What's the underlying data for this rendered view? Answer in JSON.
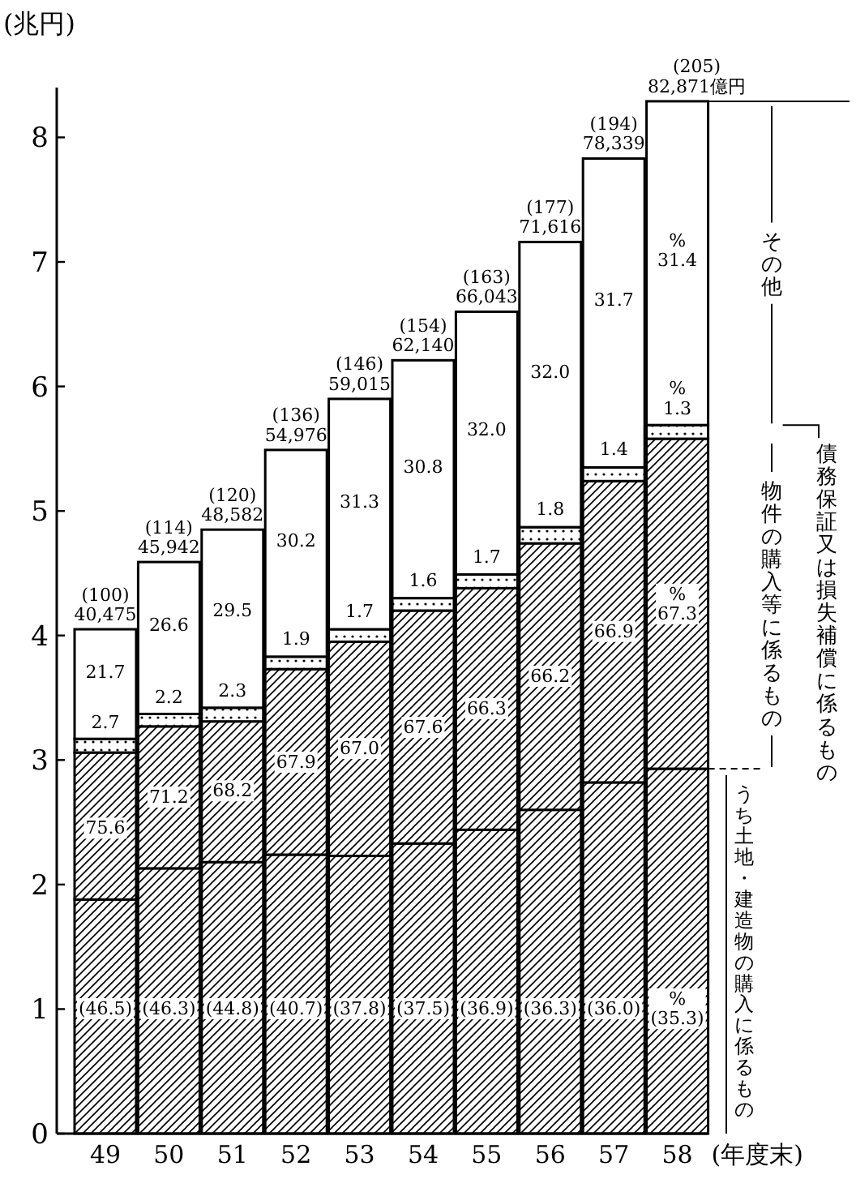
{
  "chart_data": {
    "type": "bar",
    "stacked": true,
    "ylabel": "(兆円)",
    "xlabel": "(年度末)",
    "categories": [
      "49",
      "50",
      "51",
      "52",
      "53",
      "54",
      "55",
      "56",
      "57",
      "58"
    ],
    "ylim": [
      0,
      8.4
    ],
    "yticks": [
      0,
      1,
      2,
      3,
      4,
      5,
      6,
      7,
      8
    ],
    "series": [
      {
        "name": "うち土地・建造物の購入に係るもの",
        "color": "#000000",
        "values": [
          1.88,
          2.13,
          2.18,
          2.24,
          2.23,
          2.33,
          2.44,
          2.6,
          2.82,
          2.93
        ]
      },
      {
        "name": "物件の購入等に係るもの",
        "color": "#000000",
        "values": [
          1.18,
          1.14,
          1.13,
          1.49,
          1.72,
          1.87,
          1.94,
          2.14,
          2.42,
          2.65
        ]
      },
      {
        "name": "債務保証又は損失補償に係るもの",
        "color": "#000000",
        "values": [
          0.11,
          0.1,
          0.11,
          0.1,
          0.1,
          0.1,
          0.11,
          0.13,
          0.11,
          0.11
        ]
      },
      {
        "name": "その他",
        "color": "#ffffff",
        "values": [
          0.88,
          1.22,
          1.43,
          1.66,
          1.85,
          1.91,
          2.11,
          2.29,
          2.48,
          2.6
        ]
      }
    ],
    "totals": [
      "(100)\n40,475",
      "(114)\n45,942",
      "(120)\n48,582",
      "(136)\n54,976",
      "(146)\n59,015",
      "(154)\n62,140",
      "(163)\n66,043",
      "(177)\n71,616",
      "(194)\n78,339",
      "(205)\n82,871億円"
    ],
    "annotations": [
      {
        "text": "(46.5)",
        "x": "49",
        "y": 1
      },
      {
        "text": "(46.3)",
        "x": "50",
        "y": 1
      },
      {
        "text": "(44.8)",
        "x": "51",
        "y": 1
      },
      {
        "text": "(40.7)",
        "x": "52",
        "y": 1
      },
      {
        "text": "(37.8)",
        "x": "53",
        "y": 1
      },
      {
        "text": "(37.5)",
        "x": "54",
        "y": 1
      },
      {
        "text": "(36.9)",
        "x": "55",
        "y": 1
      },
      {
        "text": "(36.3)",
        "x": "56",
        "y": 1
      },
      {
        "text": "(36.0)",
        "x": "57",
        "y": 1
      },
      {
        "text": "%\n(35.3)",
        "x": "58",
        "y": 1
      },
      {
        "text": "75.6",
        "x": "49",
        "y": 2.45
      },
      {
        "text": "71.2",
        "x": "50",
        "y": 2.7
      },
      {
        "text": "68.2",
        "x": "51",
        "y": 2.75
      },
      {
        "text": "67.9",
        "x": "52",
        "y": 2.98
      },
      {
        "text": "67.0",
        "x": "53",
        "y": 3.09
      },
      {
        "text": "67.6",
        "x": "54",
        "y": 3.26
      },
      {
        "text": "66.3",
        "x": "55",
        "y": 3.41
      },
      {
        "text": "66.2",
        "x": "56",
        "y": 3.67
      },
      {
        "text": "66.9",
        "x": "57",
        "y": 4.03
      },
      {
        "text": "%\n67.3",
        "x": "58",
        "y": 4.25
      },
      {
        "text": "2.7",
        "x": "49",
        "y": 3.3
      },
      {
        "text": "2.2",
        "x": "50",
        "y": 3.5
      },
      {
        "text": "2.3",
        "x": "51",
        "y": 3.55
      },
      {
        "text": "1.9",
        "x": "52",
        "y": 3.97
      },
      {
        "text": "1.7",
        "x": "53",
        "y": 4.19
      },
      {
        "text": "1.6",
        "x": "54",
        "y": 4.44
      },
      {
        "text": "1.7",
        "x": "55",
        "y": 4.63
      },
      {
        "text": "1.8",
        "x": "56",
        "y": 5.01
      },
      {
        "text": "1.4",
        "x": "57",
        "y": 5.49
      },
      {
        "text": "%\n1.3",
        "x": "58",
        "y": 5.9
      },
      {
        "text": "21.7",
        "x": "49",
        "y": 3.7
      },
      {
        "text": "26.6",
        "x": "50",
        "y": 4.08
      },
      {
        "text": "29.5",
        "x": "51",
        "y": 4.2
      },
      {
        "text": "30.2",
        "x": "52",
        "y": 4.76
      },
      {
        "text": "31.3",
        "x": "53",
        "y": 5.07
      },
      {
        "text": "30.8",
        "x": "54",
        "y": 5.35
      },
      {
        "text": "32.0",
        "x": "55",
        "y": 5.65
      },
      {
        "text": "32.0",
        "x": "56",
        "y": 6.11
      },
      {
        "text": "31.7",
        "x": "57",
        "y": 6.69
      },
      {
        "text": "%\n31.4",
        "x": "58",
        "y": 7.09
      }
    ]
  }
}
